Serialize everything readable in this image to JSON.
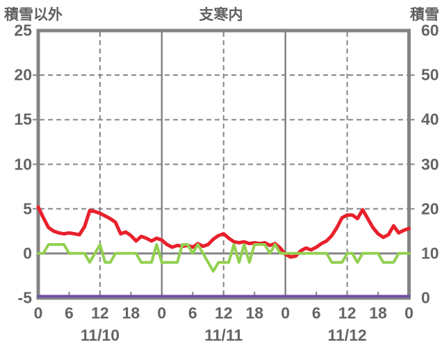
{
  "titles": {
    "left_axis": "積雪以外",
    "center": "支寒内",
    "right_axis": "積雪"
  },
  "left_axis": {
    "ticks": [
      "25",
      "20",
      "15",
      "10",
      "5",
      "0",
      "-5"
    ]
  },
  "right_axis": {
    "ticks": [
      "60",
      "50",
      "40",
      "30",
      "20",
      "10",
      "0"
    ]
  },
  "x_axis": {
    "hour_labels": [
      "0",
      "6",
      "12",
      "18",
      "0",
      "6",
      "12",
      "18",
      "0",
      "6",
      "12",
      "18",
      "0"
    ],
    "date_labels": [
      "11/10",
      "11/11",
      "11/12"
    ]
  },
  "colors": {
    "red_line": "#e8202c",
    "green_line": "#92d050",
    "purple_line": "#6f51a5",
    "axis_gray": "#848484",
    "text_gray": "#646464"
  },
  "chart_data": {
    "type": "line",
    "title": "支寒内",
    "left_axis_label": "積雪以外",
    "right_axis_label": "積雪",
    "left_ylim": [
      -5,
      25
    ],
    "right_ylim": [
      0,
      60
    ],
    "x_hours_total": 72,
    "x_step_hours": 1,
    "x_tick_hours": [
      0,
      6,
      12,
      18,
      24,
      30,
      36,
      42,
      48,
      54,
      60,
      66,
      72
    ],
    "x_dates": [
      "11/10",
      "11/11",
      "11/12"
    ],
    "grid": {
      "h_dashed_at_left_values": [
        20,
        15,
        10,
        5
      ],
      "h_solid_at_left_values": [
        0
      ],
      "v_dashed_at_hours": [
        12,
        36,
        60
      ],
      "v_solid_at_hours": [
        24,
        48
      ]
    },
    "series": [
      {
        "name": "red",
        "axis": "left",
        "color": "#e8202c",
        "values": [
          5.2,
          4.0,
          2.9,
          2.5,
          2.3,
          2.2,
          2.3,
          2.2,
          2.1,
          3.0,
          4.8,
          4.7,
          4.5,
          4.2,
          3.9,
          3.5,
          2.2,
          2.4,
          2.0,
          1.4,
          1.9,
          1.7,
          1.4,
          1.7,
          1.5,
          1.0,
          0.7,
          0.9,
          0.8,
          0.9,
          0.7,
          1.1,
          0.8,
          1.0,
          1.6,
          2.0,
          2.2,
          1.7,
          1.3,
          1.2,
          1.3,
          1.1,
          1.2,
          1.1,
          1.2,
          0.9,
          1.1,
          0.6,
          -0.1,
          -0.4,
          -0.3,
          0.3,
          0.6,
          0.4,
          0.7,
          1.1,
          1.4,
          2.0,
          2.9,
          4.0,
          4.3,
          4.3,
          3.9,
          4.9,
          3.9,
          2.9,
          2.2,
          1.8,
          2.1,
          3.1,
          2.3,
          2.6,
          2.8
        ]
      },
      {
        "name": "green",
        "axis": "left",
        "color": "#92d050",
        "values": [
          0,
          0,
          1,
          1,
          1,
          1,
          0,
          0,
          0,
          0,
          -1,
          0,
          1,
          -1,
          -1,
          0,
          0,
          0,
          0,
          0,
          -1,
          -1,
          -1,
          1,
          -1,
          -1,
          -1,
          -1,
          1,
          1,
          0,
          1,
          0,
          -1,
          -2,
          -1,
          -1,
          -1,
          1,
          -1,
          1,
          -1,
          1,
          1,
          1,
          0,
          1,
          0,
          0,
          0,
          0,
          0,
          0,
          0,
          0,
          0,
          0,
          -1,
          -1,
          -1,
          0,
          0,
          -1,
          0,
          0,
          0,
          0,
          -1,
          -1,
          -1,
          0,
          0,
          0
        ]
      },
      {
        "name": "purple",
        "axis": "right",
        "color": "#6f51a5",
        "constant_value": 0
      }
    ]
  }
}
